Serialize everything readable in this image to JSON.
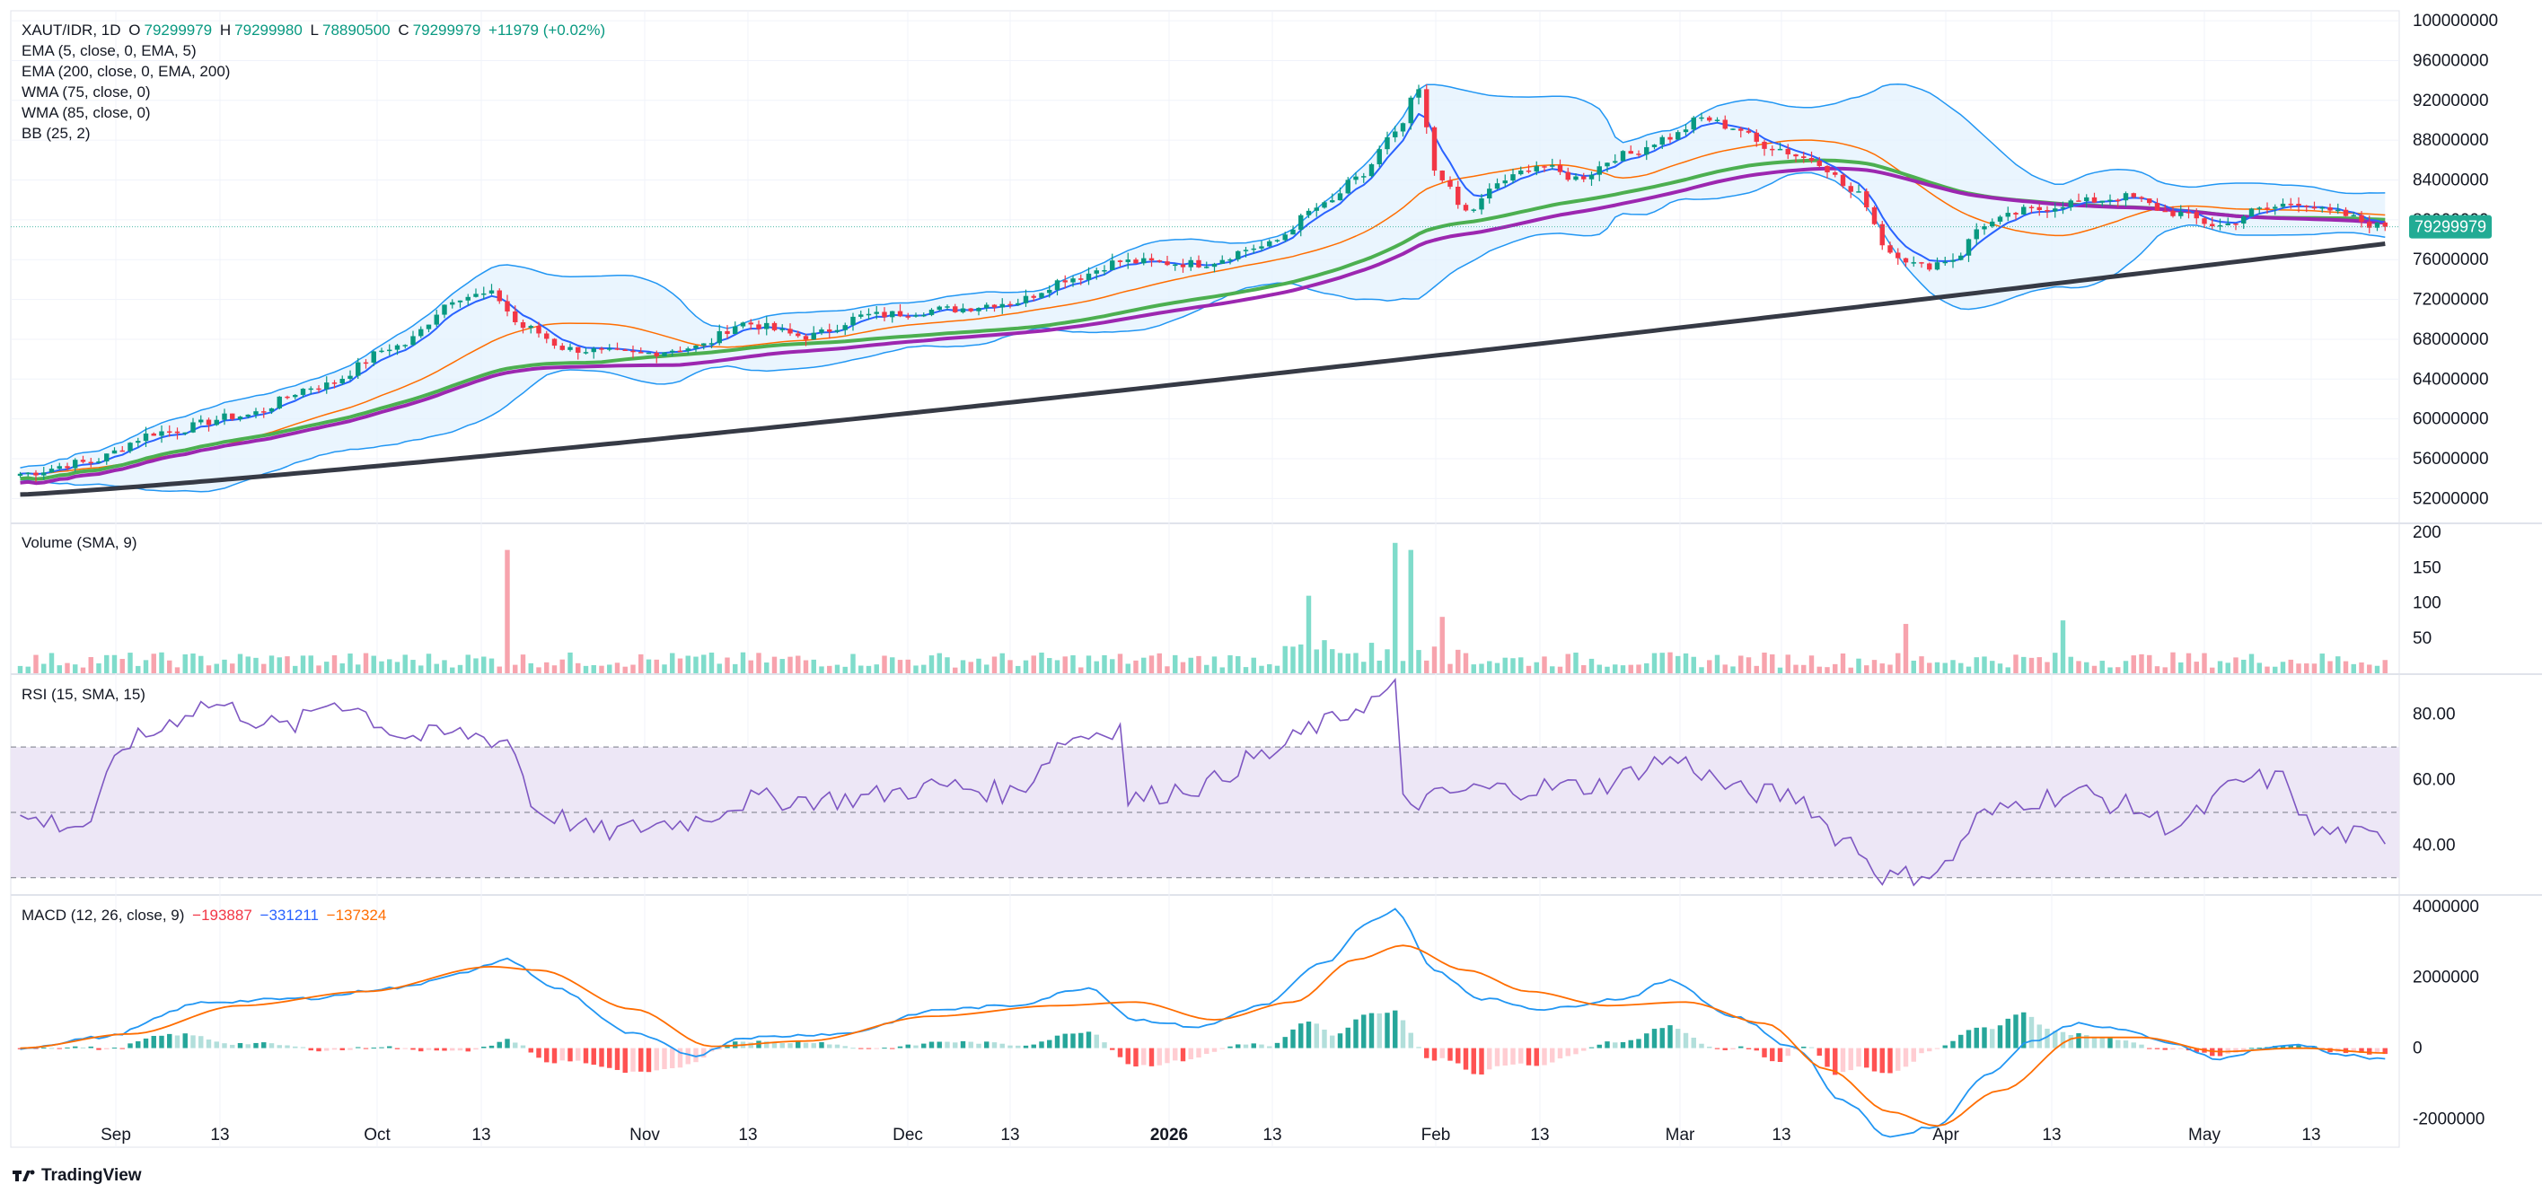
{
  "header": {
    "symbol": "XAUT/IDR, 1D",
    "o_label": "O",
    "o_value": "79299979",
    "h_label": "H",
    "h_value": "79299980",
    "l_label": "L",
    "l_value": "78890500",
    "c_label": "C",
    "c_value": "79299979",
    "change": "+11979 (+0.02%)"
  },
  "indicators": {
    "ema5": "EMA (5, close, 0, EMA, 5)",
    "ema200": "EMA (200, close, 0, EMA, 200)",
    "wma75": "WMA (75, close, 0)",
    "wma85": "WMA (85, close, 0)",
    "bb": "BB (25, 2)"
  },
  "volume_label": "Volume (SMA, 9)",
  "rsi_label": "RSI (15, SMA, 15)",
  "macd": {
    "label": "MACD (12, 26, close, 9)",
    "hist": "−193887",
    "macd": "−331211",
    "signal": "−137324"
  },
  "price_tag": "79299979",
  "brand": "TradingView",
  "colors": {
    "up": "#089981",
    "down": "#f23645",
    "ema5": "#2962ff",
    "ema200": "#363a45",
    "wma75": "#4caf50",
    "wma85": "#9c27b0",
    "bb": "#2196f3",
    "bb_fill": "#e3f2fd",
    "vol_up": "#7fdccb",
    "vol_down": "#f7a3ad",
    "rsi": "#7e57c2",
    "rsi_band": "#ede7f6",
    "macd": "#2196f3",
    "signal": "#ff6d00",
    "price_tag": "#22ab94"
  },
  "chart_data": [
    {
      "type": "candlestick",
      "title": "XAUT/IDR, 1D",
      "x_labels": [
        "Sep",
        "13",
        "Oct",
        "13",
        "Nov",
        "13",
        "Dec",
        "13",
        "2026",
        "13",
        "Feb",
        "13",
        "Mar",
        "13",
        "Apr",
        "13",
        "May",
        "13"
      ],
      "y_ticks": [
        52000000,
        56000000,
        60000000,
        64000000,
        68000000,
        72000000,
        76000000,
        80000000,
        84000000,
        88000000,
        92000000,
        96000000,
        100000000
      ],
      "ylim": [
        49600000,
        101000000
      ],
      "last_price": 79299979,
      "close_anchors": [
        [
          0,
          54500000
        ],
        [
          8,
          55600000
        ],
        [
          18,
          58700000
        ],
        [
          28,
          60300000
        ],
        [
          38,
          63300000
        ],
        [
          48,
          67300000
        ],
        [
          56,
          72300000
        ],
        [
          60,
          72500000
        ],
        [
          64,
          69200000
        ],
        [
          70,
          67000000
        ],
        [
          78,
          66500000
        ],
        [
          86,
          67200000
        ],
        [
          92,
          69600000
        ],
        [
          100,
          68300000
        ],
        [
          108,
          70400000
        ],
        [
          118,
          71000000
        ],
        [
          126,
          71700000
        ],
        [
          134,
          74200000
        ],
        [
          140,
          75800000
        ],
        [
          150,
          75600000
        ],
        [
          158,
          77300000
        ],
        [
          166,
          81400000
        ],
        [
          170,
          84000000
        ],
        [
          175,
          88500000
        ],
        [
          178,
          93000000
        ],
        [
          180,
          85000000
        ],
        [
          184,
          80800000
        ],
        [
          189,
          84000000
        ],
        [
          193,
          85500000
        ],
        [
          198,
          84200000
        ],
        [
          204,
          86500000
        ],
        [
          210,
          88300000
        ],
        [
          214,
          90200000
        ],
        [
          218,
          89300000
        ],
        [
          222,
          87500000
        ],
        [
          228,
          86100000
        ],
        [
          234,
          82500000
        ],
        [
          238,
          76800000
        ],
        [
          242,
          75300000
        ],
        [
          246,
          76100000
        ],
        [
          250,
          79600000
        ],
        [
          256,
          81000000
        ],
        [
          262,
          81800000
        ],
        [
          268,
          82300000
        ],
        [
          274,
          80700000
        ],
        [
          280,
          79400000
        ],
        [
          285,
          81000000
        ],
        [
          290,
          81800000
        ],
        [
          294,
          80700000
        ],
        [
          301,
          79300000
        ]
      ],
      "n_candles": 302,
      "overlays": [
        "EMA (5, close, 0, EMA, 5)",
        "EMA (200, close, 0, EMA, 200)",
        "WMA (75, close, 0)",
        "WMA (85, close, 0)",
        "BB (25, 2)"
      ]
    },
    {
      "type": "bar",
      "title": "Volume (SMA, 9)",
      "y_ticks": [
        50,
        100,
        150,
        200
      ],
      "ylim": [
        0,
        200
      ],
      "spikes": [
        [
          62,
          175
        ],
        [
          175,
          185
        ],
        [
          177,
          175
        ],
        [
          164,
          110
        ],
        [
          181,
          80
        ],
        [
          240,
          70
        ],
        [
          260,
          75
        ]
      ]
    },
    {
      "type": "line",
      "title": "RSI (15, SMA, 15)",
      "y_ticks": [
        "40.00",
        "60.00",
        "80.00"
      ],
      "ylim": [
        25,
        92
      ],
      "bands": [
        30,
        50,
        70
      ],
      "anchors": [
        [
          0,
          48
        ],
        [
          8,
          46
        ],
        [
          14,
          72
        ],
        [
          24,
          83
        ],
        [
          34,
          76
        ],
        [
          40,
          84
        ],
        [
          50,
          73
        ],
        [
          56,
          74
        ],
        [
          62,
          72
        ],
        [
          66,
          50
        ],
        [
          74,
          44
        ],
        [
          84,
          47
        ],
        [
          94,
          54
        ],
        [
          104,
          54
        ],
        [
          118,
          58
        ],
        [
          126,
          56
        ],
        [
          134,
          73
        ],
        [
          140,
          76
        ],
        [
          141,
          54
        ],
        [
          150,
          58
        ],
        [
          158,
          67
        ],
        [
          166,
          77
        ],
        [
          172,
          84
        ],
        [
          175,
          88
        ],
        [
          176,
          53
        ],
        [
          186,
          57
        ],
        [
          200,
          58
        ],
        [
          210,
          66
        ],
        [
          220,
          56
        ],
        [
          226,
          55
        ],
        [
          232,
          42
        ],
        [
          238,
          30
        ],
        [
          244,
          32
        ],
        [
          250,
          49
        ],
        [
          256,
          54
        ],
        [
          262,
          56
        ],
        [
          268,
          52
        ],
        [
          274,
          46
        ],
        [
          284,
          60
        ],
        [
          288,
          60
        ],
        [
          292,
          44
        ],
        [
          301,
          42
        ]
      ]
    },
    {
      "type": "line",
      "title": "MACD (12, 26, close, 9)",
      "y_ticks": [
        -2000000,
        0,
        2000000,
        4000000
      ],
      "ylim": [
        -2800000,
        4300000
      ],
      "macd_anchors": [
        [
          0,
          0
        ],
        [
          10,
          300000
        ],
        [
          24,
          1300000
        ],
        [
          36,
          1400000
        ],
        [
          48,
          1700000
        ],
        [
          56,
          2100000
        ],
        [
          62,
          2500000
        ],
        [
          68,
          1700000
        ],
        [
          78,
          400000
        ],
        [
          86,
          -200000
        ],
        [
          92,
          300000
        ],
        [
          104,
          400000
        ],
        [
          118,
          1100000
        ],
        [
          126,
          1200000
        ],
        [
          136,
          1700000
        ],
        [
          142,
          800000
        ],
        [
          150,
          600000
        ],
        [
          158,
          1200000
        ],
        [
          166,
          2400000
        ],
        [
          172,
          3600000
        ],
        [
          175,
          3900000
        ],
        [
          180,
          2200000
        ],
        [
          186,
          1400000
        ],
        [
          194,
          1100000
        ],
        [
          204,
          1400000
        ],
        [
          210,
          1900000
        ],
        [
          218,
          900000
        ],
        [
          226,
          0
        ],
        [
          232,
          -1500000
        ],
        [
          238,
          -2500000
        ],
        [
          244,
          -2200000
        ],
        [
          250,
          -800000
        ],
        [
          256,
          200000
        ],
        [
          262,
          700000
        ],
        [
          268,
          500000
        ],
        [
          274,
          100000
        ],
        [
          280,
          -300000
        ],
        [
          286,
          0
        ],
        [
          290,
          100000
        ],
        [
          296,
          -200000
        ],
        [
          301,
          -331211
        ]
      ],
      "signal_anchors": [
        [
          0,
          0
        ],
        [
          14,
          400000
        ],
        [
          28,
          1200000
        ],
        [
          44,
          1600000
        ],
        [
          60,
          2300000
        ],
        [
          66,
          2200000
        ],
        [
          78,
          1100000
        ],
        [
          88,
          50000
        ],
        [
          100,
          200000
        ],
        [
          116,
          900000
        ],
        [
          132,
          1200000
        ],
        [
          142,
          1300000
        ],
        [
          152,
          800000
        ],
        [
          162,
          1300000
        ],
        [
          170,
          2500000
        ],
        [
          176,
          2900000
        ],
        [
          184,
          2200000
        ],
        [
          192,
          1600000
        ],
        [
          202,
          1200000
        ],
        [
          212,
          1300000
        ],
        [
          222,
          700000
        ],
        [
          230,
          -600000
        ],
        [
          238,
          -1800000
        ],
        [
          244,
          -2200000
        ],
        [
          252,
          -1200000
        ],
        [
          262,
          300000
        ],
        [
          270,
          300000
        ],
        [
          280,
          -100000
        ],
        [
          290,
          0
        ],
        [
          301,
          -137324
        ]
      ]
    }
  ]
}
